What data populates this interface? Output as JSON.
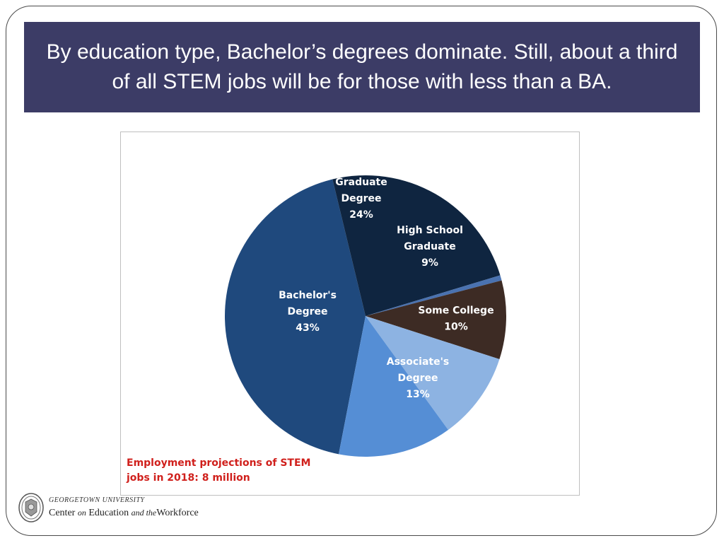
{
  "slide": {
    "title": "By education type, Bachelor’s degrees dominate.  Still, about a third of all STEM jobs will be for those with less than a BA.",
    "note": "Employment projections of STEM\njobs in 2018: 8 million",
    "footer": {
      "university": "GEORGETOWN UNIVERSITY",
      "center_part1": "Center",
      "center_part2": "on",
      "center_part3": "Education",
      "center_part4": "and the",
      "center_part5": "Workforce"
    }
  },
  "chart_data": {
    "type": "pie",
    "title": "",
    "slices": [
      {
        "label": "Bachelor's\nDegree\n43%",
        "name": "Bachelor's Degree",
        "value": 43,
        "color": "#1f497d"
      },
      {
        "label": "Graduate\nDegree\n24%",
        "name": "Graduate Degree",
        "value": 24,
        "color": "#0f2540"
      },
      {
        "label": "",
        "name": "",
        "value": 0.6,
        "color": "#4a72b0"
      },
      {
        "label": "High School\nGraduate\n9%",
        "name": "High School Graduate",
        "value": 9,
        "color": "#3d2b24"
      },
      {
        "label": "Some College\n10%",
        "name": "Some College",
        "value": 10,
        "color": "#8db3e2"
      },
      {
        "label": "Associate's\nDegree\n13%",
        "name": "Associate's Degree",
        "value": 13,
        "color": "#558ed5"
      }
    ],
    "colors": {
      "title_bar": "#3c3c66",
      "note": "#d0201c"
    }
  }
}
